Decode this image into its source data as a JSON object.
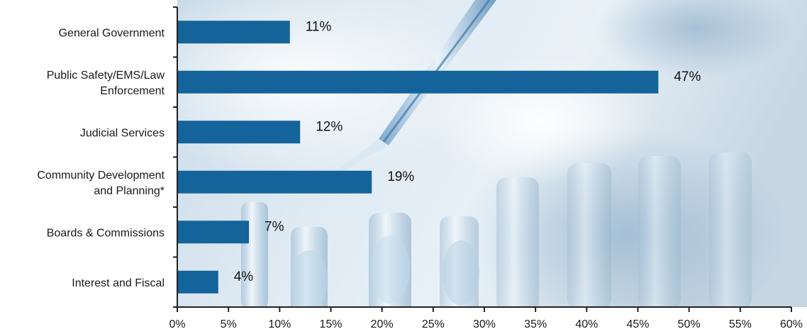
{
  "chart_data": {
    "type": "bar",
    "orientation": "horizontal",
    "categories": [
      [
        "General Government"
      ],
      [
        "Public Safety/EMS/Law",
        "Enforcement"
      ],
      [
        "Judicial Services"
      ],
      [
        "Community Development",
        "and Planning*"
      ],
      [
        "Boards & Commissions"
      ],
      [
        "Interest and Fiscal"
      ]
    ],
    "values": [
      11,
      47,
      12,
      19,
      7,
      4
    ],
    "value_labels": [
      "11%",
      "47%",
      "12%",
      "19%",
      "7%",
      "4%"
    ],
    "xlim": [
      0,
      60
    ],
    "x_ticks": [
      0,
      5,
      10,
      15,
      20,
      25,
      30,
      35,
      40,
      45,
      50,
      55,
      60
    ],
    "x_tick_labels": [
      "0%",
      "5%",
      "10%",
      "15%",
      "20%",
      "25%",
      "30%",
      "35%",
      "40%",
      "45%",
      "50%",
      "55%",
      "60%"
    ],
    "grid": false,
    "legend": "none",
    "background": "photo of laboratory pipette and test tubes in blue tones",
    "colors": {
      "bar": "#14639a",
      "axis": "#222222",
      "text": "#1a1a1a"
    }
  }
}
